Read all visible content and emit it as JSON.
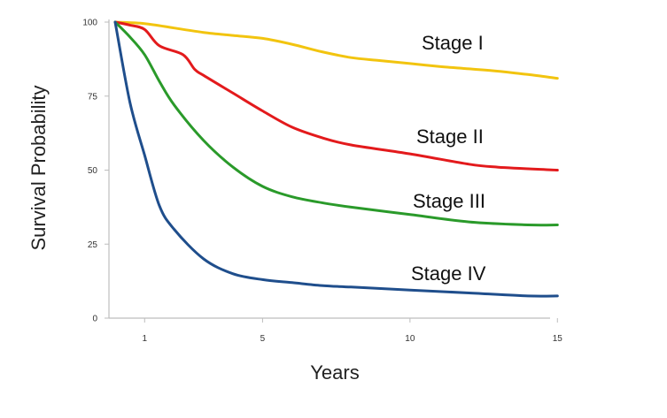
{
  "chart_data": {
    "type": "line",
    "title": "",
    "xlabel": "Years",
    "ylabel": "Survival Probability",
    "xlim": [
      0.05,
      15.45
    ],
    "ylim": [
      0,
      100
    ],
    "x_ticks": [
      1,
      5,
      10,
      15
    ],
    "y_ticks": [
      0,
      25,
      50,
      75,
      100
    ],
    "grid": false,
    "series": [
      {
        "name": "Stage I",
        "color": "#f2c40f",
        "points": [
          [
            0,
            100
          ],
          [
            1,
            99.5
          ],
          [
            2,
            98
          ],
          [
            3,
            96.5
          ],
          [
            4,
            95.5
          ],
          [
            5,
            94.5
          ],
          [
            6,
            92.5
          ],
          [
            7,
            90
          ],
          [
            8,
            88
          ],
          [
            9,
            87
          ],
          [
            10,
            86
          ],
          [
            11,
            85
          ],
          [
            12,
            84.2
          ],
          [
            13,
            83.4
          ],
          [
            14,
            82.3
          ],
          [
            15,
            81
          ]
        ]
      },
      {
        "name": "Stage II",
        "color": "#e31a1c",
        "points": [
          [
            0,
            100
          ],
          [
            0.5,
            99
          ],
          [
            1,
            97.5
          ],
          [
            1.5,
            92
          ],
          [
            2.3,
            89
          ],
          [
            2.7,
            84
          ],
          [
            3,
            82
          ],
          [
            4,
            76
          ],
          [
            5,
            70
          ],
          [
            6,
            64.5
          ],
          [
            7,
            61
          ],
          [
            8,
            58.5
          ],
          [
            10,
            55.5
          ],
          [
            12,
            52
          ],
          [
            13,
            51
          ],
          [
            15,
            50
          ]
        ]
      },
      {
        "name": "Stage III",
        "color": "#2a9a2a",
        "points": [
          [
            0,
            100
          ],
          [
            0.5,
            95
          ],
          [
            1,
            89
          ],
          [
            1.5,
            80
          ],
          [
            2,
            72
          ],
          [
            3,
            60
          ],
          [
            4,
            51
          ],
          [
            5,
            44.5
          ],
          [
            6,
            41
          ],
          [
            7,
            39
          ],
          [
            8,
            37.5
          ],
          [
            10,
            35
          ],
          [
            12,
            32.5
          ],
          [
            14,
            31.5
          ],
          [
            15,
            31.5
          ]
        ]
      },
      {
        "name": "Stage IV",
        "color": "#1f4e8c",
        "points": [
          [
            0,
            100
          ],
          [
            0.5,
            73
          ],
          [
            1,
            55
          ],
          [
            1.5,
            38
          ],
          [
            2,
            30
          ],
          [
            3,
            20
          ],
          [
            4,
            15
          ],
          [
            5,
            13
          ],
          [
            6,
            12
          ],
          [
            7,
            11
          ],
          [
            8,
            10.5
          ],
          [
            10,
            9.5
          ],
          [
            12,
            8.5
          ],
          [
            14,
            7.5
          ],
          [
            15,
            7.5
          ]
        ]
      }
    ]
  }
}
